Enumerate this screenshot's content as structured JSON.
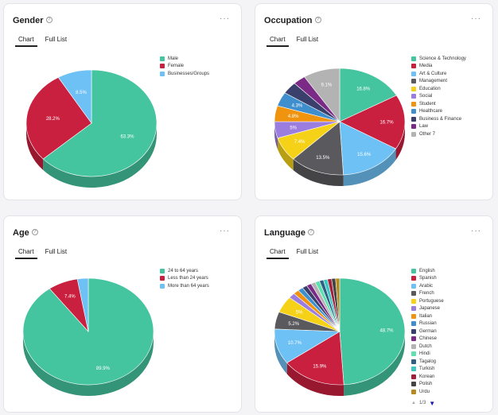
{
  "more_label": "···",
  "tabs": {
    "chart": "Chart",
    "full_list": "Full List"
  },
  "chart_data": [
    {
      "id": "gender",
      "type": "pie",
      "title": "Gender",
      "categories": [
        "Male",
        "Female",
        "Businesses/Groups"
      ],
      "values": [
        63.3,
        28.2,
        8.5
      ],
      "labels": [
        "63.3%",
        "28.2%",
        "8.5%"
      ],
      "colors": [
        "#45c59f",
        "#c9203f",
        "#6ec1f5"
      ],
      "legend": "right"
    },
    {
      "id": "occupation",
      "type": "pie",
      "title": "Occupation",
      "categories": [
        "Science & Technology",
        "Media",
        "Art & Culture",
        "Management",
        "Education",
        "Social",
        "Student",
        "Healthcare",
        "Business & Finance",
        "Law",
        "Other 7"
      ],
      "values": [
        16.8,
        16.7,
        15.6,
        13.5,
        7.4,
        5,
        4.8,
        4.3,
        3.7,
        3.1,
        9.1
      ],
      "labels": [
        "16.8%",
        "16.7%",
        "15.6%",
        "13.5%",
        "7.4%",
        "5%",
        "4.8%",
        "4.3%",
        "",
        "",
        "9.1%"
      ],
      "colors": [
        "#45c59f",
        "#c9203f",
        "#6ec1f5",
        "#5a5a5e",
        "#f5d218",
        "#9b7de0",
        "#f0940f",
        "#3f8fcf",
        "#3b3f6b",
        "#7b2a86",
        "#b3b3b3"
      ],
      "legend": "right"
    },
    {
      "id": "age",
      "type": "pie",
      "title": "Age",
      "categories": [
        "24 to 64 years",
        "Less than 24 years",
        "More than 64 years"
      ],
      "values": [
        89.9,
        7.4,
        2.7
      ],
      "labels": [
        "89.9%",
        "7.4%",
        ""
      ],
      "colors": [
        "#45c59f",
        "#c9203f",
        "#6ec1f5"
      ],
      "legend": "right"
    },
    {
      "id": "language",
      "type": "pie",
      "title": "Language",
      "categories": [
        "English",
        "Spanish",
        "Arabic",
        "French",
        "Portuguese",
        "Japanese",
        "Italian",
        "Russian",
        "German",
        "Chinese",
        "Dutch",
        "Hindi",
        "Tagalog",
        "Turkish",
        "Korean",
        "Polish",
        "Urdu"
      ],
      "values": [
        48.7,
        15.9,
        10.7,
        5.2,
        5,
        1.6,
        1.4,
        1.3,
        1.2,
        1.2,
        1.1,
        1.1,
        1.0,
        1.0,
        1.0,
        1.0,
        1.0
      ],
      "labels": [
        "48.7%",
        "15.9%",
        "10.7%",
        "5.2%",
        "5%",
        "",
        "",
        "",
        "",
        "",
        "",
        "",
        "",
        "",
        "",
        "",
        ""
      ],
      "colors": [
        "#45c59f",
        "#c9203f",
        "#6ec1f5",
        "#5a5a5e",
        "#f5d218",
        "#9b7de0",
        "#f0940f",
        "#3f8fcf",
        "#3b3f6b",
        "#7b2a86",
        "#b3b3b3",
        "#5fe0b0",
        "#2e5f86",
        "#3ec7c0",
        "#a31f3a",
        "#444444",
        "#b58a1e"
      ],
      "legend": "right",
      "pager": "1/3"
    }
  ]
}
